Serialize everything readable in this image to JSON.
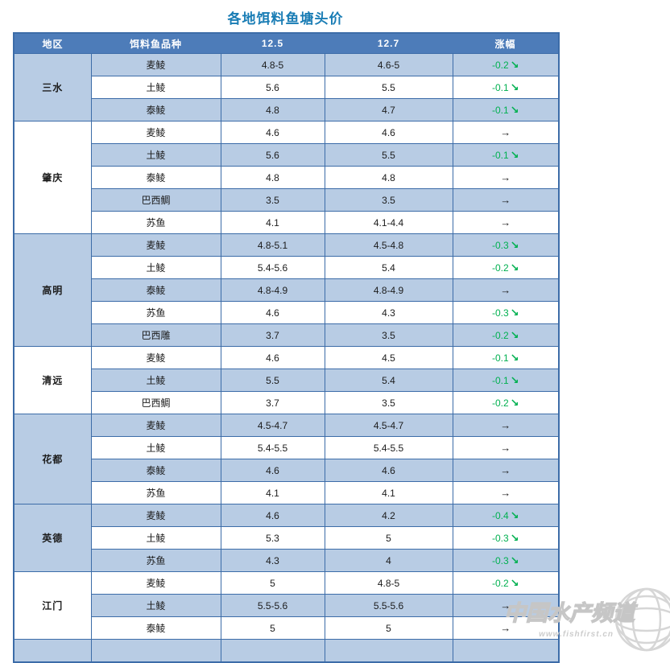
{
  "title": "各地饵料鱼塘头价",
  "columns": [
    "地区",
    "饵料鱼品种",
    "12.5",
    "12.7",
    "涨幅"
  ],
  "change_symbols": {
    "down": "↘",
    "flat": "→"
  },
  "colors": {
    "header_bg": "#4d7cb9",
    "row_alt_bg": "#b8cce4",
    "row_bg": "#ffffff",
    "border": "#3c6ca8",
    "title_text": "#1a7db5",
    "down_green": "#00b050",
    "flat_black": "#1c1c1c"
  },
  "regions": [
    {
      "name": "三水",
      "rows": [
        {
          "variety": "麦鲮",
          "p1": "4.8-5",
          "p2": "4.6-5",
          "change": "-0.2",
          "dir": "down"
        },
        {
          "variety": "土鲮",
          "p1": "5.6",
          "p2": "5.5",
          "change": "-0.1",
          "dir": "down"
        },
        {
          "variety": "泰鲮",
          "p1": "4.8",
          "p2": "4.7",
          "change": "-0.1",
          "dir": "down"
        }
      ]
    },
    {
      "name": "肇庆",
      "rows": [
        {
          "variety": "麦鲮",
          "p1": "4.6",
          "p2": "4.6",
          "change": "",
          "dir": "flat"
        },
        {
          "variety": "土鲮",
          "p1": "5.6",
          "p2": "5.5",
          "change": "-0.1",
          "dir": "down"
        },
        {
          "variety": "泰鲮",
          "p1": "4.8",
          "p2": "4.8",
          "change": "",
          "dir": "flat"
        },
        {
          "variety": "巴西鲷",
          "p1": "3.5",
          "p2": "3.5",
          "change": "",
          "dir": "flat"
        },
        {
          "variety": "苏鱼",
          "p1": "4.1",
          "p2": "4.1-4.4",
          "change": "",
          "dir": "flat"
        }
      ]
    },
    {
      "name": "高明",
      "rows": [
        {
          "variety": "麦鲮",
          "p1": "4.8-5.1",
          "p2": "4.5-4.8",
          "change": "-0.3",
          "dir": "down"
        },
        {
          "variety": "土鲮",
          "p1": "5.4-5.6",
          "p2": "5.4",
          "change": "-0.2",
          "dir": "down"
        },
        {
          "variety": "泰鲮",
          "p1": "4.8-4.9",
          "p2": "4.8-4.9",
          "change": "",
          "dir": "flat"
        },
        {
          "variety": "苏鱼",
          "p1": "4.6",
          "p2": "4.3",
          "change": "-0.3",
          "dir": "down"
        },
        {
          "variety": "巴西雕",
          "p1": "3.7",
          "p2": "3.5",
          "change": "-0.2",
          "dir": "down"
        }
      ]
    },
    {
      "name": "清远",
      "rows": [
        {
          "variety": "麦鲮",
          "p1": "4.6",
          "p2": "4.5",
          "change": "-0.1",
          "dir": "down"
        },
        {
          "variety": "土鲮",
          "p1": "5.5",
          "p2": "5.4",
          "change": "-0.1",
          "dir": "down"
        },
        {
          "variety": "巴西鲷",
          "p1": "3.7",
          "p2": "3.5",
          "change": "-0.2",
          "dir": "down"
        }
      ]
    },
    {
      "name": "花都",
      "rows": [
        {
          "variety": "麦鲮",
          "p1": "4.5-4.7",
          "p2": "4.5-4.7",
          "change": "",
          "dir": "flat"
        },
        {
          "variety": "土鲮",
          "p1": "5.4-5.5",
          "p2": "5.4-5.5",
          "change": "",
          "dir": "flat"
        },
        {
          "variety": "泰鲮",
          "p1": "4.6",
          "p2": "4.6",
          "change": "",
          "dir": "flat"
        },
        {
          "variety": "苏鱼",
          "p1": "4.1",
          "p2": "4.1",
          "change": "",
          "dir": "flat"
        }
      ]
    },
    {
      "name": "英德",
      "rows": [
        {
          "variety": "麦鲮",
          "p1": "4.6",
          "p2": "4.2",
          "change": "-0.4",
          "dir": "down"
        },
        {
          "variety": "土鲮",
          "p1": "5.3",
          "p2": "5",
          "change": "-0.3",
          "dir": "down"
        },
        {
          "variety": "苏鱼",
          "p1": "4.3",
          "p2": "4",
          "change": "-0.3",
          "dir": "down"
        }
      ]
    },
    {
      "name": "江门",
      "rows": [
        {
          "variety": "麦鲮",
          "p1": "5",
          "p2": "4.8-5",
          "change": "-0.2",
          "dir": "down"
        },
        {
          "variety": "土鲮",
          "p1": "5.5-5.6",
          "p2": "5.5-5.6",
          "change": "",
          "dir": "flat"
        },
        {
          "variety": "泰鲮",
          "p1": "5",
          "p2": "5",
          "change": "",
          "dir": "flat"
        }
      ]
    }
  ],
  "watermark": {
    "text": "中国水产频道",
    "url": "www.fishfirst.cn"
  }
}
